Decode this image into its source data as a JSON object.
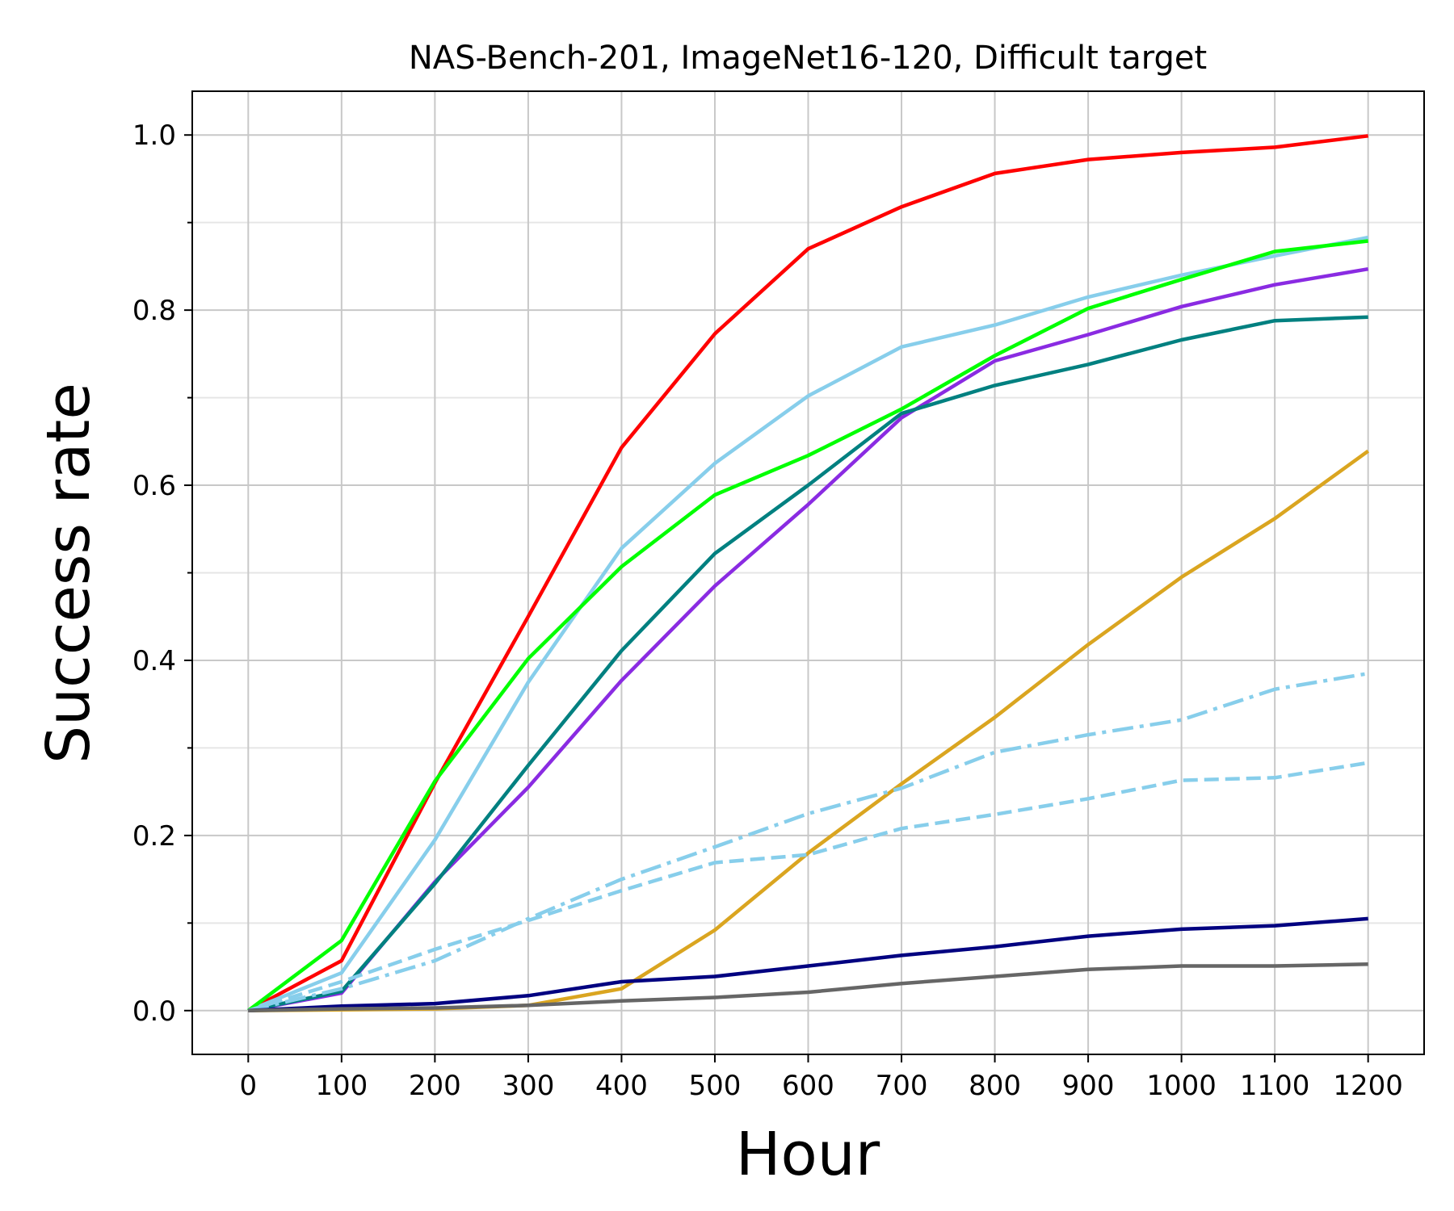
{
  "chart_data": {
    "type": "line",
    "title": "NAS-Bench-201, ImageNet16-120, Difficult target",
    "xlabel": "Hour",
    "ylabel": "Success rate",
    "x": [
      0,
      100,
      200,
      300,
      400,
      500,
      600,
      700,
      800,
      900,
      1000,
      1100,
      1200
    ],
    "xticks": [
      "0",
      "100",
      "200",
      "300",
      "400",
      "500",
      "600",
      "700",
      "800",
      "900",
      "1000",
      "1100",
      "1200"
    ],
    "yticks": [
      "0.0",
      "0.2",
      "0.4",
      "0.6",
      "0.8",
      "1.0"
    ],
    "xlim": [
      -60,
      1260
    ],
    "ylim": [
      -0.05,
      1.05
    ],
    "grid": true,
    "series": [
      {
        "color": "#ff0000",
        "style": "solid",
        "values": [
          0.0,
          0.057,
          0.26,
          0.45,
          0.643,
          0.773,
          0.87,
          0.918,
          0.956,
          0.972,
          0.98,
          0.986,
          0.999
        ]
      },
      {
        "color": "#87ceeb",
        "style": "solid",
        "values": [
          0.0,
          0.043,
          0.195,
          0.375,
          0.528,
          0.625,
          0.702,
          0.758,
          0.783,
          0.815,
          0.84,
          0.862,
          0.883
        ]
      },
      {
        "color": "#00ff00",
        "style": "solid",
        "values": [
          0.0,
          0.08,
          0.262,
          0.402,
          0.507,
          0.589,
          0.634,
          0.687,
          0.748,
          0.802,
          0.835,
          0.867,
          0.879
        ]
      },
      {
        "color": "#8a2be2",
        "style": "solid",
        "values": [
          0.0,
          0.02,
          0.147,
          0.255,
          0.377,
          0.485,
          0.578,
          0.677,
          0.742,
          0.772,
          0.804,
          0.829,
          0.847
        ]
      },
      {
        "color": "#008080",
        "style": "solid",
        "values": [
          0.0,
          0.022,
          0.145,
          0.28,
          0.411,
          0.522,
          0.6,
          0.682,
          0.714,
          0.738,
          0.766,
          0.788,
          0.792
        ]
      },
      {
        "color": "#daa520",
        "style": "solid",
        "values": [
          0.0,
          0.001,
          0.002,
          0.006,
          0.025,
          0.092,
          0.18,
          0.259,
          0.335,
          0.418,
          0.495,
          0.562,
          0.639
        ]
      },
      {
        "color": "#87ceeb",
        "style": "dashdot",
        "values": [
          0.0,
          0.025,
          0.057,
          0.105,
          0.15,
          0.187,
          0.225,
          0.254,
          0.295,
          0.315,
          0.332,
          0.367,
          0.385
        ]
      },
      {
        "color": "#87ceeb",
        "style": "dashed",
        "values": [
          0.0,
          0.033,
          0.07,
          0.103,
          0.137,
          0.169,
          0.178,
          0.208,
          0.224,
          0.242,
          0.263,
          0.266,
          0.283
        ]
      },
      {
        "color": "#000080",
        "style": "solid",
        "values": [
          0.0,
          0.005,
          0.008,
          0.017,
          0.033,
          0.039,
          0.051,
          0.063,
          0.073,
          0.085,
          0.093,
          0.097,
          0.105
        ]
      },
      {
        "color": "#666666",
        "style": "solid",
        "values": [
          0.0,
          0.002,
          0.003,
          0.006,
          0.011,
          0.015,
          0.021,
          0.031,
          0.039,
          0.047,
          0.051,
          0.051,
          0.053
        ]
      }
    ]
  }
}
